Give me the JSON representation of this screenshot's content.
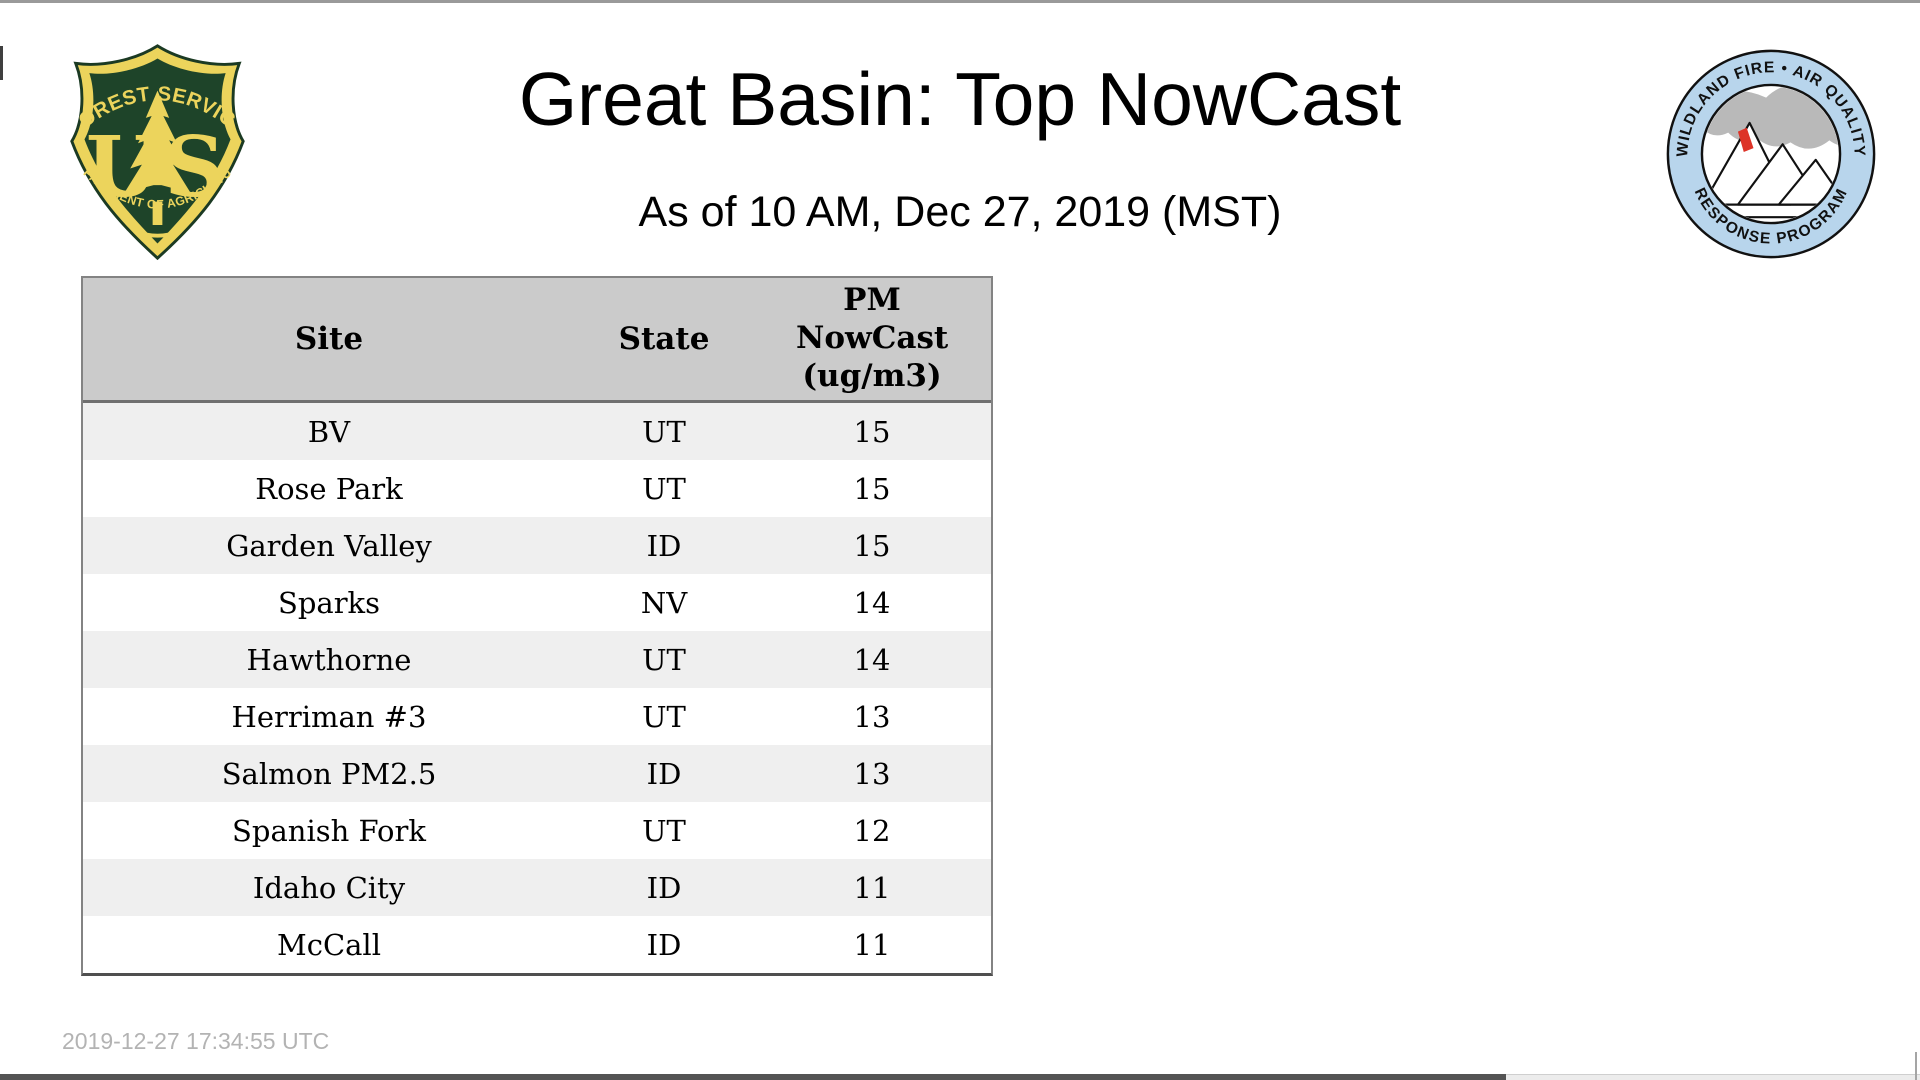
{
  "header": {
    "title": "Great Basin: Top NowCast",
    "subtitle": "As of 10 AM, Dec 27, 2019 (MST)"
  },
  "logos": {
    "forest_service": {
      "name": "US Forest Service shield",
      "arc_top": "FOREST SERVICE",
      "arc_bottom": "DEPARTMENT OF AGRICULTURE",
      "letter_u": "U",
      "letter_s": "S",
      "colors": {
        "green": "#1e4429",
        "yellow": "#ecd45c"
      }
    },
    "wfaqrp": {
      "name": "Wildland Fire Air Quality Response Program seal",
      "arc_top": "WILDLAND FIRE • AIR QUALITY",
      "arc_bottom": "RESPONSE PROGRAM",
      "colors": {
        "ring_blue": "#b8d5ec",
        "smoke_gray": "#b9b9b9",
        "flame_red": "#dd3327"
      }
    }
  },
  "table": {
    "columns": [
      "Site",
      "State",
      "PM NowCast (ug/m3)"
    ],
    "rows": [
      {
        "site": "BV",
        "state": "UT",
        "value": "15"
      },
      {
        "site": "Rose Park",
        "state": "UT",
        "value": "15"
      },
      {
        "site": "Garden Valley",
        "state": "ID",
        "value": "15"
      },
      {
        "site": "Sparks",
        "state": "NV",
        "value": "14"
      },
      {
        "site": "Hawthorne",
        "state": "UT",
        "value": "14"
      },
      {
        "site": "Herriman #3",
        "state": "UT",
        "value": "13"
      },
      {
        "site": "Salmon PM2.5",
        "state": "ID",
        "value": "13"
      },
      {
        "site": "Spanish Fork",
        "state": "UT",
        "value": "12"
      },
      {
        "site": "Idaho City",
        "state": "ID",
        "value": "11"
      },
      {
        "site": "McCall",
        "state": "ID",
        "value": "11"
      }
    ],
    "styles": {
      "header_bg": "#cbcbcb",
      "row_odd_bg": "#efefef",
      "row_even_bg": "#ffffff",
      "border": "#838383"
    }
  },
  "footer": {
    "timestamp": "2019-12-27 17:34:55 UTC"
  }
}
